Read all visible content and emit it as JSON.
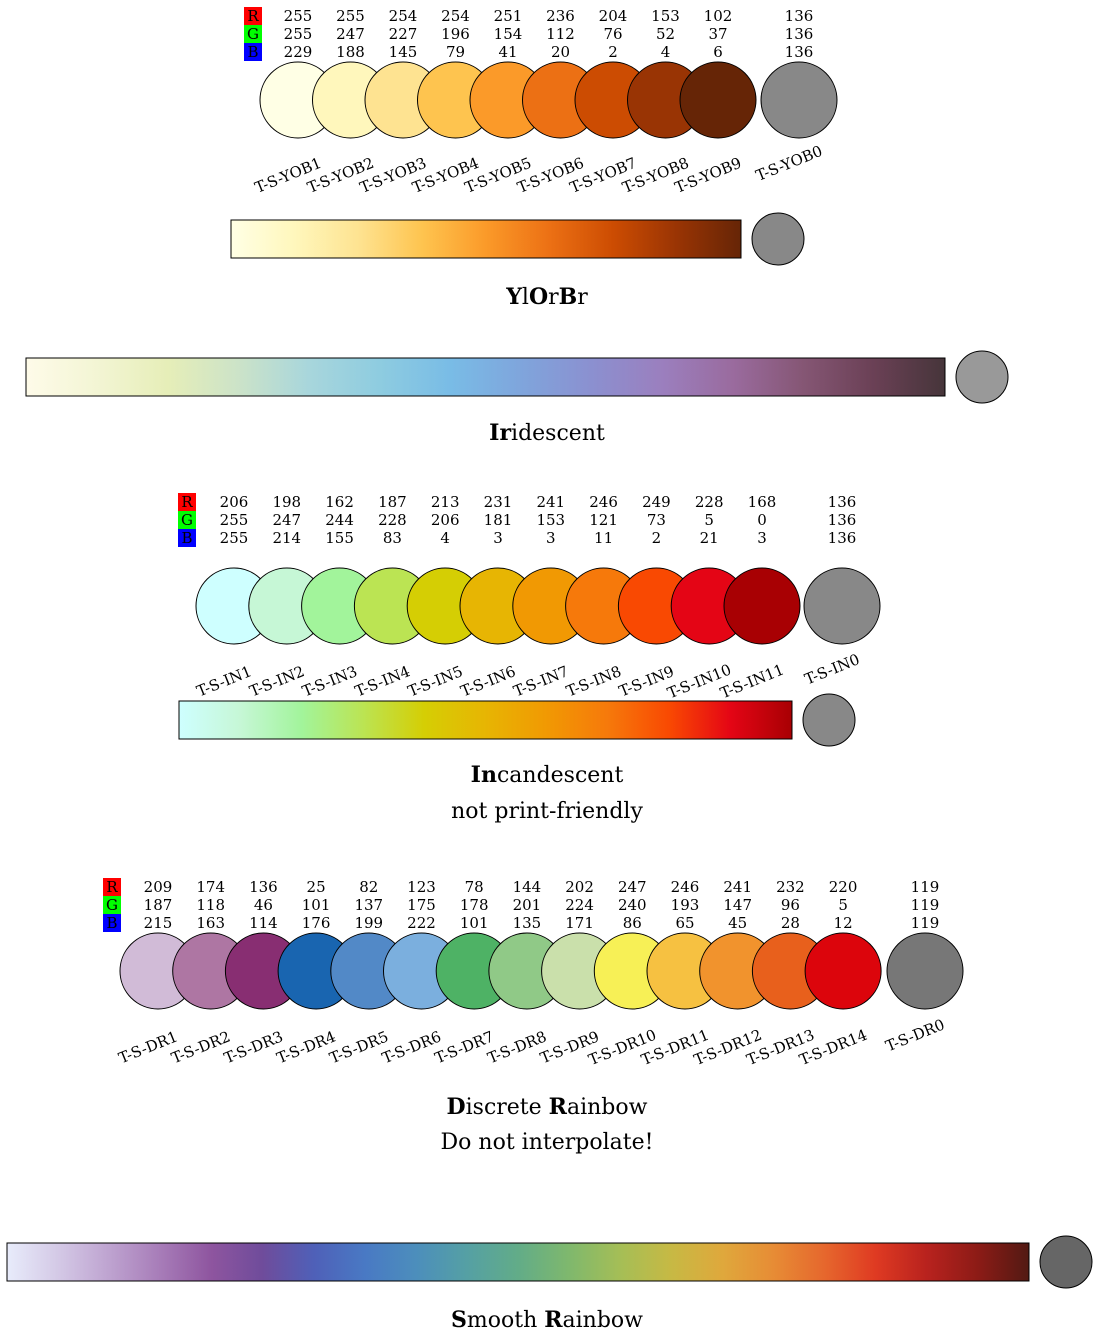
{
  "schemes": [
    {
      "id": "ylorbr",
      "rgb_keys": [
        "R",
        "G",
        "B"
      ],
      "swatches": [
        {
          "label": "T-S-YOB1",
          "r": 255,
          "g": 255,
          "b": 229,
          "color": "#ffffe5"
        },
        {
          "label": "T-S-YOB2",
          "r": 255,
          "g": 247,
          "b": 188,
          "color": "#fff7bc"
        },
        {
          "label": "T-S-YOB3",
          "r": 254,
          "g": 227,
          "b": 145,
          "color": "#fee391"
        },
        {
          "label": "T-S-YOB4",
          "r": 254,
          "g": 196,
          "b": 79,
          "color": "#fec44f"
        },
        {
          "label": "T-S-YOB5",
          "r": 251,
          "g": 154,
          "b": 41,
          "color": "#fb9a29"
        },
        {
          "label": "T-S-YOB6",
          "r": 236,
          "g": 112,
          "b": 20,
          "color": "#ec7014"
        },
        {
          "label": "T-S-YOB7",
          "r": 204,
          "g": 76,
          "b": 2,
          "color": "#cc4c02"
        },
        {
          "label": "T-S-YOB8",
          "r": 153,
          "g": 52,
          "b": 4,
          "color": "#993404"
        },
        {
          "label": "T-S-YOB9",
          "r": 102,
          "g": 37,
          "b": 6,
          "color": "#662506"
        }
      ],
      "bad": {
        "label": "T-S-YOB0",
        "r": 136,
        "g": 136,
        "b": 136,
        "color": "#888888"
      },
      "gradient": [
        "#ffffe5",
        "#fff7bc",
        "#fee391",
        "#fec44f",
        "#fb9a29",
        "#ec7014",
        "#cc4c02",
        "#993404",
        "#662506"
      ],
      "gradient_bad": "#888888",
      "title_parts": [
        {
          "t": "Y",
          "b": true
        },
        {
          "t": "l",
          "b": false
        },
        {
          "t": "O",
          "b": true
        },
        {
          "t": "r",
          "b": false
        },
        {
          "t": "B",
          "b": true
        },
        {
          "t": "r",
          "b": false
        }
      ],
      "subtitle": ""
    },
    {
      "id": "iridescent",
      "rgb_keys": [],
      "swatches": [],
      "bad": null,
      "gradient": [
        "#fefbe9",
        "#f3f5d4",
        "#e6eeb8",
        "#cce3c8",
        "#a8d6dc",
        "#8ecce0",
        "#79bce6",
        "#7fa5dc",
        "#8b90d0",
        "#9b7fbe",
        "#9a6b9e",
        "#855674",
        "#6a4055",
        "#46353a"
      ],
      "gradient_bad": "#999999",
      "title_parts": [
        {
          "t": "Ir",
          "b": true
        },
        {
          "t": "idescent",
          "b": false
        }
      ],
      "subtitle": ""
    },
    {
      "id": "incandescent",
      "rgb_keys": [
        "R",
        "G",
        "B"
      ],
      "swatches": [
        {
          "label": "T-S-IN1",
          "r": 206,
          "g": 255,
          "b": 255,
          "color": "#ceffff"
        },
        {
          "label": "T-S-IN2",
          "r": 198,
          "g": 247,
          "b": 214,
          "color": "#c6f7d6"
        },
        {
          "label": "T-S-IN3",
          "r": 162,
          "g": 244,
          "b": 155,
          "color": "#a2f49b"
        },
        {
          "label": "T-S-IN4",
          "r": 187,
          "g": 228,
          "b": 83,
          "color": "#bbe453"
        },
        {
          "label": "T-S-IN5",
          "r": 213,
          "g": 206,
          "b": 4,
          "color": "#d5ce04"
        },
        {
          "label": "T-S-IN6",
          "r": 231,
          "g": 181,
          "b": 3,
          "color": "#e7b503"
        },
        {
          "label": "T-S-IN7",
          "r": 241,
          "g": 153,
          "b": 3,
          "color": "#f19903"
        },
        {
          "label": "T-S-IN8",
          "r": 246,
          "g": 121,
          "b": 11,
          "color": "#f6790b"
        },
        {
          "label": "T-S-IN9",
          "r": 249,
          "g": 73,
          "b": 2,
          "color": "#f94902"
        },
        {
          "label": "T-S-IN10",
          "r": 228,
          "g": 5,
          "b": 21,
          "color": "#e40515"
        },
        {
          "label": "T-S-IN11",
          "r": 168,
          "g": 0,
          "b": 3,
          "color": "#a80003"
        }
      ],
      "bad": {
        "label": "T-S-IN0",
        "r": 136,
        "g": 136,
        "b": 136,
        "color": "#888888"
      },
      "gradient": [
        "#ceffff",
        "#c6f7d6",
        "#a2f49b",
        "#bbe453",
        "#d5ce04",
        "#e7b503",
        "#f19903",
        "#f6790b",
        "#f94902",
        "#e40515",
        "#a80003"
      ],
      "gradient_bad": "#888888",
      "title_parts": [
        {
          "t": "In",
          "b": true
        },
        {
          "t": "candescent",
          "b": false
        }
      ],
      "subtitle": "not print-friendly"
    },
    {
      "id": "discrete-rainbow",
      "rgb_keys": [
        "R",
        "G",
        "B"
      ],
      "swatches": [
        {
          "label": "T-S-DR1",
          "r": 209,
          "g": 187,
          "b": 215,
          "color": "#d1bbd7"
        },
        {
          "label": "T-S-DR2",
          "r": 174,
          "g": 118,
          "b": 163,
          "color": "#ae76a3"
        },
        {
          "label": "T-S-DR3",
          "r": 136,
          "g": 46,
          "b": 114,
          "color": "#882e72"
        },
        {
          "label": "T-S-DR4",
          "r": 25,
          "g": 101,
          "b": 176,
          "color": "#1965b0"
        },
        {
          "label": "T-S-DR5",
          "r": 82,
          "g": 137,
          "b": 199,
          "color": "#5289c7"
        },
        {
          "label": "T-S-DR6",
          "r": 123,
          "g": 175,
          "b": 222,
          "color": "#7bafde"
        },
        {
          "label": "T-S-DR7",
          "r": 78,
          "g": 178,
          "b": 101,
          "color": "#4eb265"
        },
        {
          "label": "T-S-DR8",
          "r": 144,
          "g": 201,
          "b": 135,
          "color": "#90c987"
        },
        {
          "label": "T-S-DR9",
          "r": 202,
          "g": 224,
          "b": 171,
          "color": "#cae0ab"
        },
        {
          "label": "T-S-DR10",
          "r": 247,
          "g": 240,
          "b": 86,
          "color": "#f7f056"
        },
        {
          "label": "T-S-DR11",
          "r": 246,
          "g": 193,
          "b": 65,
          "color": "#f6c141"
        },
        {
          "label": "T-S-DR12",
          "r": 241,
          "g": 147,
          "b": 45,
          "color": "#f1932d"
        },
        {
          "label": "T-S-DR13",
          "r": 232,
          "g": 96,
          "b": 28,
          "color": "#e8601c"
        },
        {
          "label": "T-S-DR14",
          "r": 220,
          "g": 5,
          "b": 12,
          "color": "#dc050c"
        }
      ],
      "bad": {
        "label": "T-S-DR0",
        "r": 119,
        "g": 119,
        "b": 119,
        "color": "#777777"
      },
      "gradient": [],
      "gradient_bad": "",
      "title_parts": [
        {
          "t": "D",
          "b": true
        },
        {
          "t": "iscrete ",
          "b": false
        },
        {
          "t": "R",
          "b": true
        },
        {
          "t": "ainbow",
          "b": false
        }
      ],
      "subtitle": "Do not interpolate!"
    },
    {
      "id": "smooth-rainbow",
      "rgb_keys": [],
      "swatches": [],
      "bad": null,
      "gradient": [
        "#e8ecfb",
        "#d4c9e6",
        "#bea3d0",
        "#a77cb8",
        "#8e559f",
        "#6f4c9b",
        "#4f60b8",
        "#4979c4",
        "#4c8ebc",
        "#55a0a4",
        "#62ac88",
        "#7fb86d",
        "#a5be56",
        "#c7b944",
        "#dfa83c",
        "#e78c35",
        "#e6672d",
        "#df3a22",
        "#b8221e",
        "#8c1b16",
        "#521a13"
      ],
      "gradient_bad": "#666666",
      "title_parts": [
        {
          "t": "S",
          "b": true
        },
        {
          "t": "mooth ",
          "b": false
        },
        {
          "t": "R",
          "b": true
        },
        {
          "t": "ainbow",
          "b": false
        }
      ],
      "subtitle": ""
    }
  ]
}
